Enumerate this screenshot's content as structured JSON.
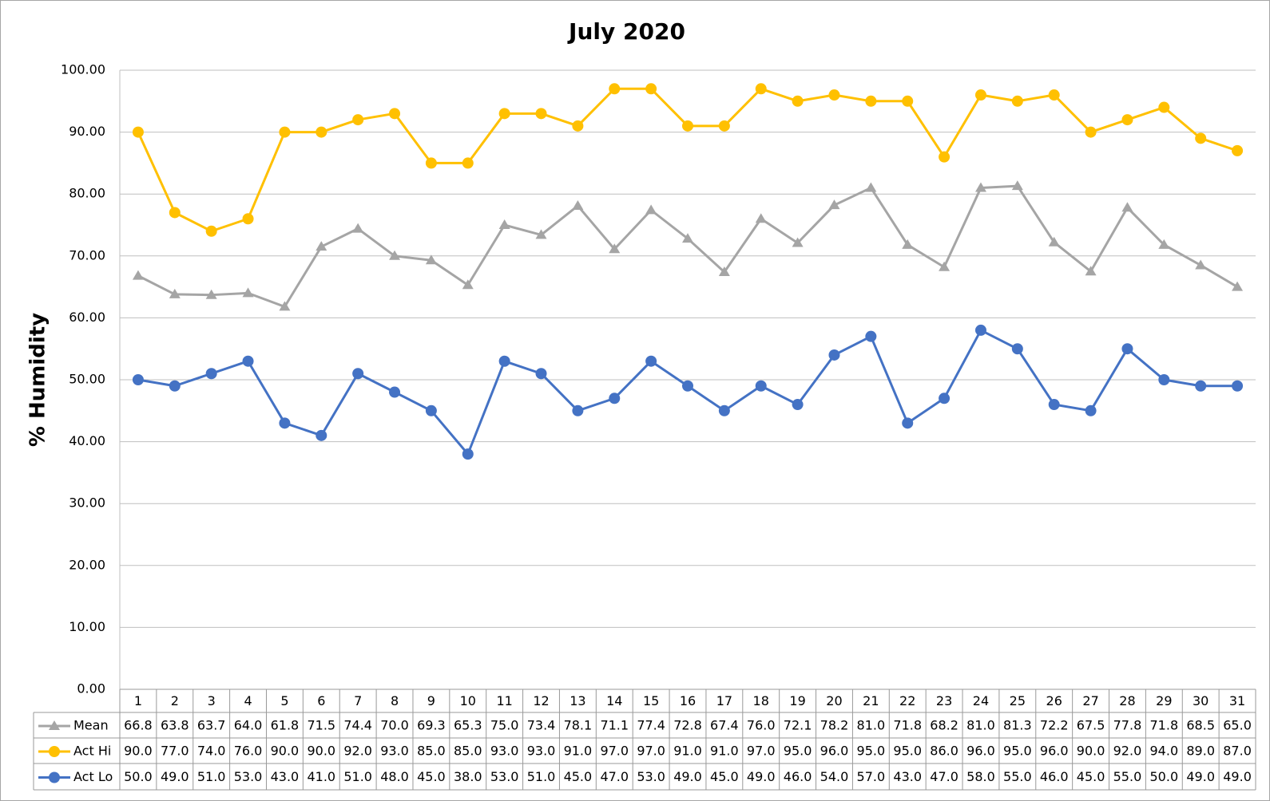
{
  "chart_data": {
    "type": "line",
    "title": "July 2020",
    "y_label": "% Humidity",
    "categories": [
      "1",
      "2",
      "3",
      "4",
      "5",
      "6",
      "7",
      "8",
      "9",
      "10",
      "11",
      "12",
      "13",
      "14",
      "15",
      "16",
      "17",
      "18",
      "19",
      "20",
      "21",
      "22",
      "23",
      "24",
      "25",
      "26",
      "27",
      "28",
      "29",
      "30",
      "31"
    ],
    "ylim": [
      0,
      100
    ],
    "yticks": [
      {
        "value": 0,
        "label": "0.00"
      },
      {
        "value": 10,
        "label": "10.00"
      },
      {
        "value": 20,
        "label": "20.00"
      },
      {
        "value": 30,
        "label": "30.00"
      },
      {
        "value": 40,
        "label": "40.00"
      },
      {
        "value": 50,
        "label": "50.00"
      },
      {
        "value": 60,
        "label": "60.00"
      },
      {
        "value": 70,
        "label": "70.00"
      },
      {
        "value": 80,
        "label": "80.00"
      },
      {
        "value": 90,
        "label": "90.00"
      },
      {
        "value": 100,
        "label": "100.00"
      }
    ],
    "grid": true,
    "data_table": true,
    "series": [
      {
        "name": "Mean",
        "color": "#a5a5a5",
        "marker": "triangle",
        "values": [
          66.8,
          63.8,
          63.7,
          64.0,
          61.8,
          71.5,
          74.4,
          70.0,
          69.3,
          65.3,
          75.0,
          73.4,
          78.1,
          71.1,
          77.4,
          72.8,
          67.4,
          76.0,
          72.1,
          78.2,
          81.0,
          71.8,
          68.2,
          81.0,
          81.3,
          72.2,
          67.5,
          77.8,
          71.8,
          68.5,
          65.0
        ],
        "value_labels": [
          "66.8",
          "63.8",
          "63.7",
          "64.0",
          "61.8",
          "71.5",
          "74.4",
          "70.0",
          "69.3",
          "65.3",
          "75.0",
          "73.4",
          "78.1",
          "71.1",
          "77.4",
          "72.8",
          "67.4",
          "76.0",
          "72.1",
          "78.2",
          "81.0",
          "71.8",
          "68.2",
          "81.0",
          "81.3",
          "72.2",
          "67.5",
          "77.8",
          "71.8",
          "68.5",
          "65.0"
        ]
      },
      {
        "name": "Act Hi",
        "color": "#ffc000",
        "marker": "circle",
        "values": [
          90,
          77,
          74,
          76,
          90,
          90,
          92,
          93,
          85,
          85,
          93,
          93,
          91,
          97,
          97,
          91,
          91,
          97,
          95,
          96,
          95,
          95,
          86,
          96,
          95,
          96,
          90,
          92,
          94,
          89,
          87
        ],
        "value_labels": [
          "90.0",
          "77.0",
          "74.0",
          "76.0",
          "90.0",
          "90.0",
          "92.0",
          "93.0",
          "85.0",
          "85.0",
          "93.0",
          "93.0",
          "91.0",
          "97.0",
          "97.0",
          "91.0",
          "91.0",
          "97.0",
          "95.0",
          "96.0",
          "95.0",
          "95.0",
          "86.0",
          "96.0",
          "95.0",
          "96.0",
          "90.0",
          "92.0",
          "94.0",
          "89.0",
          "87.0"
        ]
      },
      {
        "name": "Act Lo",
        "color": "#4472c4",
        "marker": "circle",
        "values": [
          50,
          49,
          51,
          53,
          43,
          41,
          51,
          48,
          45,
          38,
          53,
          51,
          45,
          47,
          53,
          49,
          45,
          49,
          46,
          54,
          57,
          43,
          47,
          58,
          55,
          46,
          45,
          55,
          50,
          49,
          49
        ],
        "value_labels": [
          "50.0",
          "49.0",
          "51.0",
          "53.0",
          "43.0",
          "41.0",
          "51.0",
          "48.0",
          "45.0",
          "38.0",
          "53.0",
          "51.0",
          "45.0",
          "47.0",
          "53.0",
          "49.0",
          "45.0",
          "49.0",
          "46.0",
          "54.0",
          "57.0",
          "43.0",
          "47.0",
          "58.0",
          "55.0",
          "46.0",
          "45.0",
          "55.0",
          "50.0",
          "49.0",
          "49.0"
        ]
      }
    ]
  }
}
